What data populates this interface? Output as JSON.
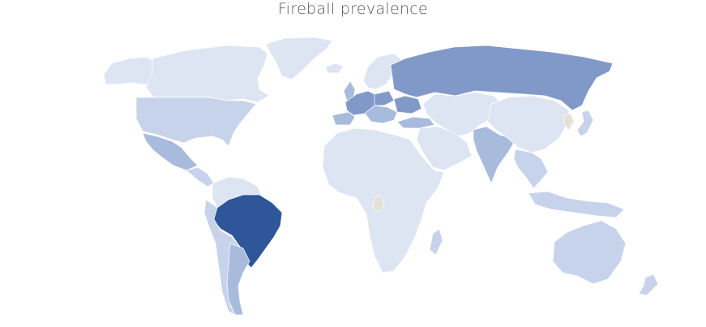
{
  "title": "Fireball prevalence",
  "colors": {
    "level_1": "#dde5f3",
    "level_2": "#c7d3ea",
    "level_3": "#a9bbdc",
    "level_4": "#8199c8",
    "level_5": "#2e5699",
    "no_data": "#e4e1d8"
  },
  "regions": [
    {
      "name": "greenland",
      "level": 1
    },
    {
      "name": "alaska",
      "level": 1
    },
    {
      "name": "canada",
      "level": 1
    },
    {
      "name": "united-states",
      "level": 2
    },
    {
      "name": "mexico",
      "level": 3
    },
    {
      "name": "central-america",
      "level": 2
    },
    {
      "name": "northern-south-america",
      "level": 1
    },
    {
      "name": "brazil",
      "level": 5
    },
    {
      "name": "andean-south-america",
      "level": 2
    },
    {
      "name": "argentina",
      "level": 3
    },
    {
      "name": "iceland",
      "level": 1
    },
    {
      "name": "scandinavia",
      "level": 1
    },
    {
      "name": "united-kingdom",
      "level": 3
    },
    {
      "name": "western-europe",
      "level": 4
    },
    {
      "name": "iberia",
      "level": 3
    },
    {
      "name": "central-europe",
      "level": 4
    },
    {
      "name": "eastern-europe",
      "level": 3
    },
    {
      "name": "ukraine",
      "level": 4
    },
    {
      "name": "russia",
      "level": 4
    },
    {
      "name": "turkey",
      "level": 3
    },
    {
      "name": "middle-east",
      "level": 1
    },
    {
      "name": "central-asia",
      "level": 1
    },
    {
      "name": "india",
      "level": 3
    },
    {
      "name": "china",
      "level": 1
    },
    {
      "name": "korea",
      "level": 0
    },
    {
      "name": "japan",
      "level": 2
    },
    {
      "name": "southeast-asia",
      "level": 2
    },
    {
      "name": "indonesia",
      "level": 2
    },
    {
      "name": "africa",
      "level": 1
    },
    {
      "name": "central-africa",
      "level": 0
    },
    {
      "name": "madagascar",
      "level": 2
    },
    {
      "name": "australia",
      "level": 2
    },
    {
      "name": "new-zealand",
      "level": 2
    }
  ]
}
